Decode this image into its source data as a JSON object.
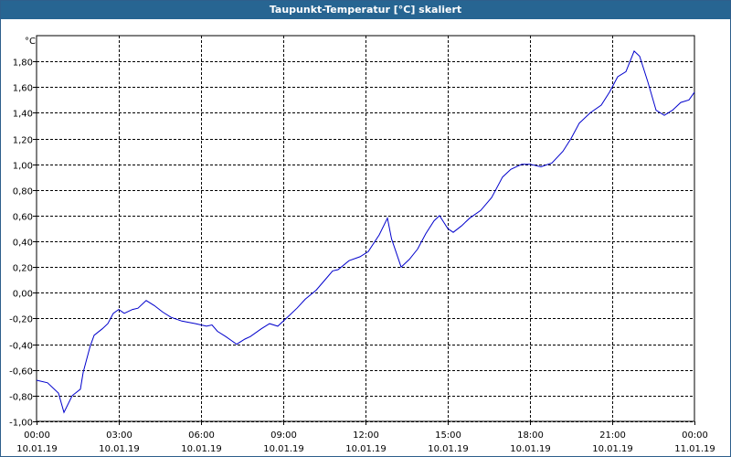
{
  "window": {
    "title": "Taupunkt-Temperatur [°C] skaliert"
  },
  "colors": {
    "title_bg": "#276592",
    "series": "#0000cc",
    "grid": "#000000"
  },
  "chart_data": {
    "type": "line",
    "title": "Taupunkt-Temperatur [°C] skaliert",
    "unit": "°C",
    "ylim": [
      -1.0,
      2.0
    ],
    "grid": true,
    "y_ticks": [
      "-1,00",
      "-0,80",
      "-0,60",
      "-0,40",
      "-0,20",
      "0,00",
      "0,20",
      "0,40",
      "0,60",
      "0,80",
      "1,00",
      "1,20",
      "1,40",
      "1,60",
      "1,80"
    ],
    "x_ticks": [
      {
        "time": "00:00",
        "date": "10.01.19"
      },
      {
        "time": "03:00",
        "date": "10.01.19"
      },
      {
        "time": "06:00",
        "date": "10.01.19"
      },
      {
        "time": "09:00",
        "date": "10.01.19"
      },
      {
        "time": "12:00",
        "date": "10.01.19"
      },
      {
        "time": "15:00",
        "date": "10.01.19"
      },
      {
        "time": "18:00",
        "date": "10.01.19"
      },
      {
        "time": "21:00",
        "date": "10.01.19"
      },
      {
        "time": "00:00",
        "date": "11.01.19"
      }
    ],
    "series": [
      {
        "x_hours": [
          0,
          0.4,
          0.8,
          1.0,
          1.3,
          1.6,
          1.7,
          1.95,
          2.1,
          2.4,
          2.6,
          2.8,
          3.0,
          3.2,
          3.5,
          3.7,
          4.0,
          4.3,
          4.6,
          4.9,
          5.3,
          5.8,
          6.2,
          6.4,
          6.6,
          6.9,
          7.3,
          7.6,
          7.8,
          8.2,
          8.5,
          8.8,
          9.2,
          9.5,
          9.8,
          10.2,
          10.6,
          10.8,
          11.0,
          11.4,
          11.8,
          12.1,
          12.5,
          12.8,
          12.95,
          13.3,
          13.6,
          13.9,
          14.2,
          14.5,
          14.7,
          15.0,
          15.2,
          15.5,
          15.8,
          16.2,
          16.6,
          17.0,
          17.3,
          17.7,
          18.0,
          18.4,
          18.8,
          19.2,
          19.5,
          19.8,
          20.2,
          20.6,
          20.9,
          21.2,
          21.5,
          21.8,
          22.0,
          22.3,
          22.6,
          22.9,
          23.2,
          23.5,
          23.8,
          24.0
        ],
        "y": [
          -0.68,
          -0.7,
          -0.78,
          -0.93,
          -0.8,
          -0.75,
          -0.62,
          -0.42,
          -0.33,
          -0.28,
          -0.24,
          -0.16,
          -0.13,
          -0.16,
          -0.13,
          -0.12,
          -0.06,
          -0.1,
          -0.15,
          -0.19,
          -0.22,
          -0.24,
          -0.26,
          -0.25,
          -0.3,
          -0.34,
          -0.4,
          -0.36,
          -0.34,
          -0.28,
          -0.24,
          -0.26,
          -0.18,
          -0.12,
          -0.05,
          0.02,
          0.12,
          0.17,
          0.18,
          0.25,
          0.28,
          0.32,
          0.45,
          0.58,
          0.42,
          0.2,
          0.26,
          0.34,
          0.46,
          0.56,
          0.6,
          0.5,
          0.47,
          0.52,
          0.58,
          0.64,
          0.74,
          0.9,
          0.96,
          1.0,
          1.0,
          0.98,
          1.01,
          1.1,
          1.2,
          1.32,
          1.4,
          1.46,
          1.56,
          1.68,
          1.72,
          1.88,
          1.84,
          1.64,
          1.42,
          1.38,
          1.42,
          1.48,
          1.5,
          1.56
        ]
      }
    ]
  }
}
